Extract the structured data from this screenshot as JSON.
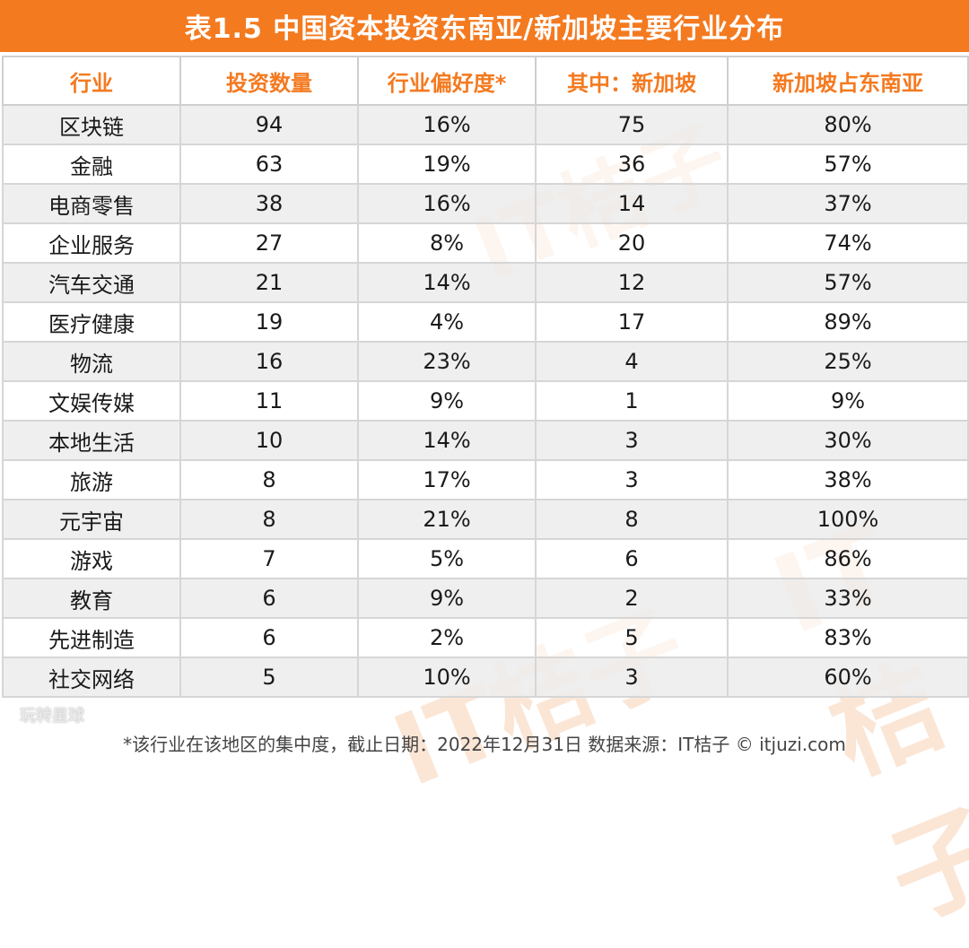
{
  "title": "表1.5  中国资本投资东南亚/新加坡主要行业分布",
  "watermark": "IT桔子",
  "headers": [
    "行业",
    "投资数量",
    "行业偏好度*",
    "其中：新加坡",
    "新加坡占东南亚"
  ],
  "rows": [
    [
      "区块链",
      "94",
      "16%",
      "75",
      "80%"
    ],
    [
      "金融",
      "63",
      "19%",
      "36",
      "57%"
    ],
    [
      "电商零售",
      "38",
      "16%",
      "14",
      "37%"
    ],
    [
      "企业服务",
      "27",
      "8%",
      "20",
      "74%"
    ],
    [
      "汽车交通",
      "21",
      "14%",
      "12",
      "57%"
    ],
    [
      "医疗健康",
      "19",
      "4%",
      "17",
      "89%"
    ],
    [
      "物流",
      "16",
      "23%",
      "4",
      "25%"
    ],
    [
      "文娱传媒",
      "11",
      "9%",
      "1",
      "9%"
    ],
    [
      "本地生活",
      "10",
      "14%",
      "3",
      "30%"
    ],
    [
      "旅游",
      "8",
      "17%",
      "3",
      "38%"
    ],
    [
      "元宇宙",
      "8",
      "21%",
      "8",
      "100%"
    ],
    [
      "游戏",
      "7",
      "5%",
      "6",
      "86%"
    ],
    [
      "教育",
      "6",
      "9%",
      "2",
      "33%"
    ],
    [
      "先进制造",
      "6",
      "2%",
      "5",
      "83%"
    ],
    [
      "社交网络",
      "5",
      "10%",
      "3",
      "60%"
    ]
  ],
  "overlay_text": "玩转星球",
  "footnote": "*该行业在该地区的集中度，截止日期：2022年12月31日    数据来源：IT桔子 © itjuzi.com",
  "colors": {
    "accent": "#f47a20",
    "row_shade": "#ececec",
    "border": "#d6d6d6"
  }
}
